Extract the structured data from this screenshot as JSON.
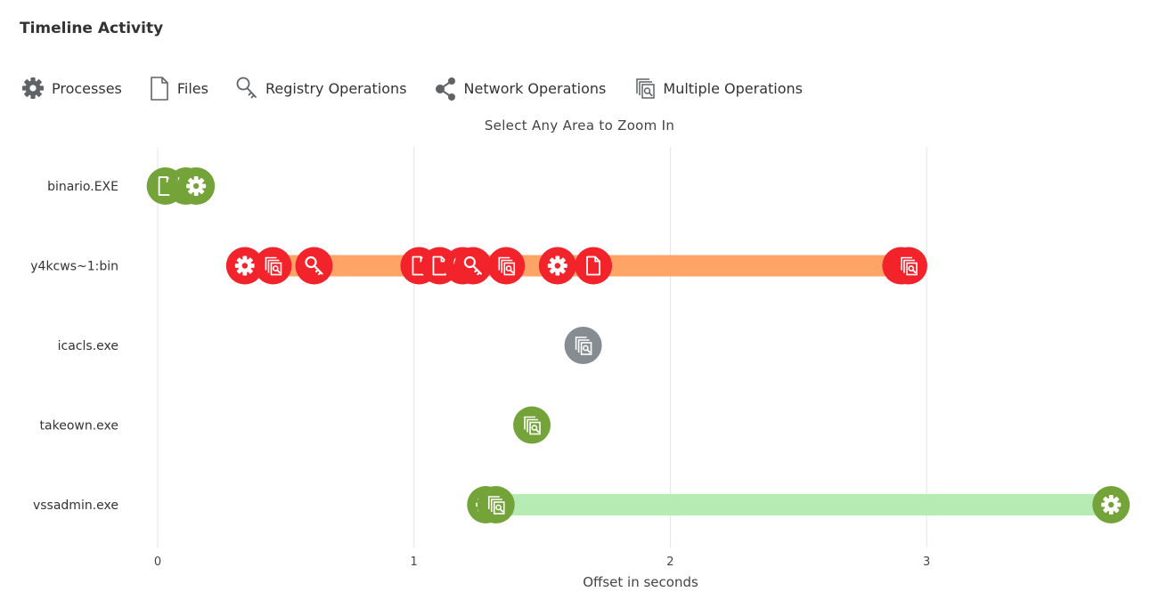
{
  "header": {
    "title": "Timeline Activity",
    "subtitle": "Select Any Area to Zoom In"
  },
  "legend": [
    {
      "label": "Processes",
      "icon": "gear-icon"
    },
    {
      "label": "Files",
      "icon": "file-icon"
    },
    {
      "label": "Registry Operations",
      "icon": "key-icon"
    },
    {
      "label": "Network Operations",
      "icon": "share-icon"
    },
    {
      "label": "Multiple Operations",
      "icon": "multi-search-icon"
    }
  ],
  "colors": {
    "green": "#74a33a",
    "red": "#f2232b",
    "gray": "#858c92",
    "bar_orange": "#ffa467",
    "bar_green": "#b5ecb3",
    "grid": "#e3e3ea"
  },
  "chart_data": {
    "type": "timeline",
    "title": "Timeline Activity",
    "subtitle": "Select Any Area to Zoom In",
    "xlabel": "Offset in seconds",
    "xlim": [
      0,
      3.75
    ],
    "xticks": [
      0,
      1,
      2,
      3
    ],
    "rows": [
      {
        "label": "binario.EXE",
        "bar": null,
        "events": [
          {
            "t": 0.03,
            "kind": "file",
            "color": "green"
          },
          {
            "t": 0.11,
            "kind": "multi",
            "color": "green"
          },
          {
            "t": 0.15,
            "kind": "process",
            "color": "green"
          }
        ]
      },
      {
        "label": "y4kcws~1:bin",
        "bar": {
          "start": 0.34,
          "end": 2.93,
          "color": "bar_orange"
        },
        "events": [
          {
            "t": 0.34,
            "kind": "process",
            "color": "red"
          },
          {
            "t": 0.45,
            "kind": "multi",
            "color": "red"
          },
          {
            "t": 0.61,
            "kind": "registry",
            "color": "red"
          },
          {
            "t": 1.02,
            "kind": "file",
            "color": "red"
          },
          {
            "t": 1.1,
            "kind": "file",
            "color": "red"
          },
          {
            "t": 1.19,
            "kind": "registry",
            "color": "red"
          },
          {
            "t": 1.23,
            "kind": "registry",
            "color": "red"
          },
          {
            "t": 1.36,
            "kind": "multi",
            "color": "red"
          },
          {
            "t": 1.56,
            "kind": "process",
            "color": "red"
          },
          {
            "t": 1.7,
            "kind": "file",
            "color": "red"
          },
          {
            "t": 2.9,
            "kind": "multi",
            "color": "red"
          },
          {
            "t": 2.93,
            "kind": "multi",
            "color": "red"
          }
        ]
      },
      {
        "label": "icacls.exe",
        "bar": null,
        "events": [
          {
            "t": 1.66,
            "kind": "multi",
            "color": "gray"
          }
        ]
      },
      {
        "label": "takeown.exe",
        "bar": null,
        "events": [
          {
            "t": 1.46,
            "kind": "multi",
            "color": "green"
          }
        ]
      },
      {
        "label": "vssadmin.exe",
        "bar": {
          "start": 1.28,
          "end": 3.72,
          "color": "bar_green"
        },
        "events": [
          {
            "t": 1.28,
            "kind": "process",
            "color": "green"
          },
          {
            "t": 1.32,
            "kind": "multi",
            "color": "green"
          },
          {
            "t": 3.72,
            "kind": "process",
            "color": "green"
          }
        ]
      }
    ]
  }
}
